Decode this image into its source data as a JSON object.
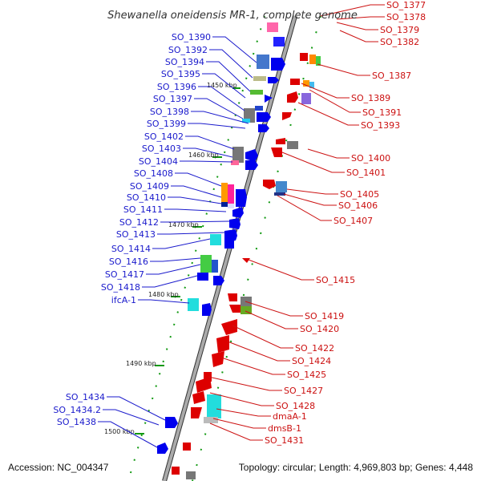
{
  "title": "Shewanella oneidensis MR-1, complete genome",
  "footer": {
    "accession": "Accession: NC_004347",
    "topology": "Topology: circular; Length: 4,969,803 bp; Genes: 4,448"
  },
  "colors": {
    "strand_plus": "#0000ff",
    "strand_minus": "#ee0000",
    "backbone": "#888888",
    "tick": "#119911"
  },
  "ticks": [
    "1450 kbp",
    "1460 kbp",
    "1470 kbp",
    "1480 kbp",
    "1490 kbp",
    "1500 kbp"
  ],
  "labels_left": [
    "SO_1390",
    "SO_1392",
    "SO_1394",
    "SO_1395",
    "SO_1396",
    "SO_1397",
    "SO_1398",
    "SO_1399",
    "SO_1402",
    "SO_1403",
    "SO_1404",
    "SO_1408",
    "SO_1409",
    "SO_1410",
    "SO_1411",
    "SO_1412",
    "SO_1413",
    "SO_1414",
    "SO_1416",
    "SO_1417",
    "SO_1418",
    "ifcA-1",
    "SO_1434",
    "SO_1434.2",
    "SO_1438"
  ],
  "labels_right": [
    "SO_1377",
    "SO_1378",
    "SO_1379",
    "SO_1382",
    "SO_1387",
    "SO_1389",
    "SO_1391",
    "SO_1393",
    "SO_1400",
    "SO_1401",
    "SO_1405",
    "SO_1406",
    "SO_1407",
    "SO_1415",
    "SO_1419",
    "SO_1420",
    "SO_1422",
    "SO_1424",
    "SO_1425",
    "SO_1427",
    "SO_1428",
    "dmaA-1",
    "dmsB-1",
    "SO_1431"
  ]
}
